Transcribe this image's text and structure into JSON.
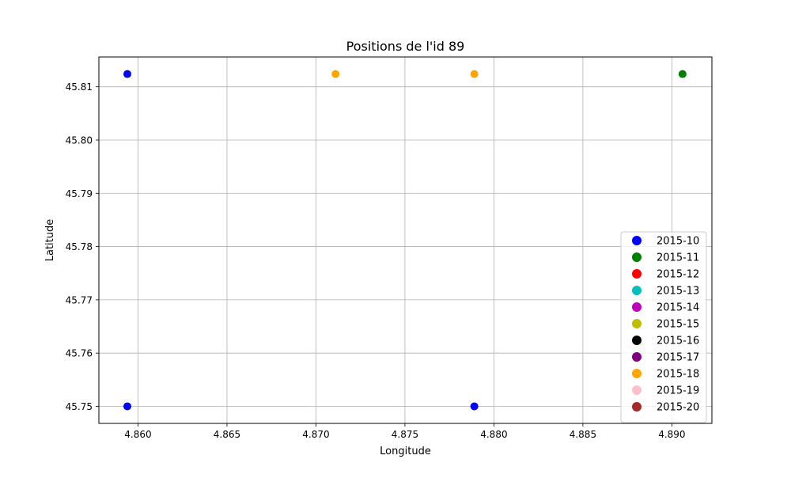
{
  "chart_data": {
    "type": "scatter",
    "title": "Positions de l'id 89",
    "xlabel": "Longitude",
    "ylabel": "Latitude",
    "xlim": [
      4.8578,
      4.89225
    ],
    "ylim": [
      45.7468,
      45.8156
    ],
    "xticks": [
      4.86,
      4.865,
      4.87,
      4.875,
      4.88,
      4.885,
      4.89
    ],
    "xtick_labels": [
      "4.860",
      "4.865",
      "4.870",
      "4.875",
      "4.880",
      "4.885",
      "4.890"
    ],
    "yticks": [
      45.75,
      45.76,
      45.77,
      45.78,
      45.79,
      45.8,
      45.81
    ],
    "ytick_labels": [
      "45.75",
      "45.76",
      "45.77",
      "45.78",
      "45.79",
      "45.80",
      "45.81"
    ],
    "grid": true,
    "legend_position": "lower-right",
    "series": [
      {
        "name": "2015-10",
        "color": "#0000ff",
        "points": [
          [
            4.8594,
            45.8124
          ],
          [
            4.8594,
            45.75
          ],
          [
            4.8789,
            45.75
          ]
        ]
      },
      {
        "name": "2015-11",
        "color": "#008000",
        "points": [
          [
            4.8906,
            45.8124
          ]
        ]
      },
      {
        "name": "2015-12",
        "color": "#ff0000",
        "points": []
      },
      {
        "name": "2015-13",
        "color": "#00bfbf",
        "points": []
      },
      {
        "name": "2015-14",
        "color": "#bf00bf",
        "points": []
      },
      {
        "name": "2015-15",
        "color": "#bfbf00",
        "points": []
      },
      {
        "name": "2015-16",
        "color": "#000000",
        "points": []
      },
      {
        "name": "2015-17",
        "color": "#800080",
        "points": []
      },
      {
        "name": "2015-18",
        "color": "#ffa500",
        "points": [
          [
            4.8711,
            45.8124
          ],
          [
            4.8789,
            45.8124
          ]
        ]
      },
      {
        "name": "2015-19",
        "color": "#ffc0cb",
        "points": []
      },
      {
        "name": "2015-20",
        "color": "#a52a2a",
        "points": []
      }
    ]
  }
}
